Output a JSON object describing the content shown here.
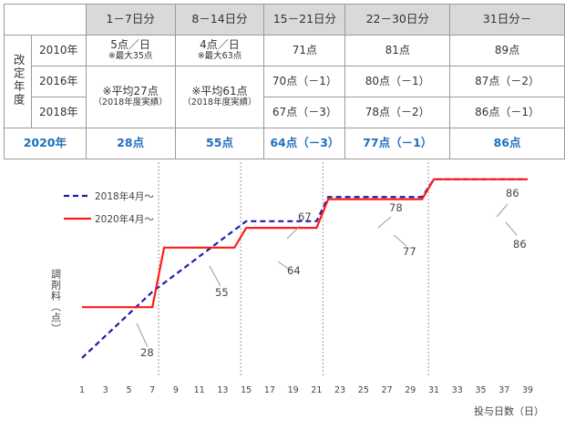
{
  "table": {
    "side_label": "改定年度",
    "headers": [
      "1－7日分",
      "8－14日分",
      "15－21日分",
      "22－30日分",
      "31日分－"
    ],
    "rows": [
      {
        "year": "2010年",
        "cells": [
          "5点／日",
          "4点／日",
          "71点",
          "81点",
          "89点"
        ],
        "notes": [
          "※最大35点",
          "※最大63点"
        ]
      },
      {
        "year": "2016年",
        "cells": [
          "",
          "",
          "70点（－1）",
          "80点（－1）",
          "87点（－2）"
        ]
      },
      {
        "year": "2018年",
        "cells": [
          "",
          "",
          "67点（－3）",
          "78点（－2）",
          "86点（－1）"
        ]
      },
      {
        "year": "2020年",
        "cells": [
          "28点",
          "55点",
          "64点（－3）",
          "77点（－1）",
          "86点"
        ]
      }
    ],
    "merged": [
      {
        "main": "※平均27点",
        "sub": "（2018年度実績）"
      },
      {
        "main": "※平均61点",
        "sub": "（2018年度実績）"
      }
    ]
  },
  "chart_data": {
    "type": "line",
    "xlabel": "投与日数（日）",
    "ylabel": "調剤料（点）",
    "x_ticks": [
      1,
      3,
      5,
      7,
      9,
      11,
      13,
      15,
      17,
      19,
      21,
      23,
      25,
      27,
      29,
      31,
      33,
      35,
      37,
      39
    ],
    "xlim": [
      1,
      39
    ],
    "ylim": [
      0,
      95
    ],
    "divider_days": [
      8,
      15,
      22,
      31
    ],
    "legend_position": "top-left",
    "series": [
      {
        "name": "2018年4月～",
        "color": "#1c1cb0",
        "style": "dashed",
        "points": [
          [
            1,
            5
          ],
          [
            7,
            35
          ],
          [
            8,
            39
          ],
          [
            14,
            63
          ],
          [
            15,
            67
          ],
          [
            21,
            67
          ],
          [
            22,
            78
          ],
          [
            30,
            78
          ],
          [
            31,
            86
          ],
          [
            39,
            86
          ]
        ]
      },
      {
        "name": "2020年4月～",
        "color": "#ff1a1a",
        "style": "solid",
        "points": [
          [
            1,
            28
          ],
          [
            7,
            28
          ],
          [
            8,
            55
          ],
          [
            14,
            55
          ],
          [
            15,
            64
          ],
          [
            21,
            64
          ],
          [
            22,
            77
          ],
          [
            30,
            77
          ],
          [
            31,
            86
          ],
          [
            39,
            86
          ]
        ]
      }
    ],
    "annotations": [
      {
        "text": "28",
        "x": 6,
        "y": 28
      },
      {
        "text": "55",
        "x": 12,
        "y": 55
      },
      {
        "text": "64",
        "x": 19,
        "y": 64
      },
      {
        "text": "67",
        "x": 19,
        "y": 67
      },
      {
        "text": "77",
        "x": 28,
        "y": 77
      },
      {
        "text": "78",
        "x": 28,
        "y": 78
      },
      {
        "text": "86",
        "x": 36,
        "y": 86
      },
      {
        "text": "86",
        "x": 36,
        "y": 86
      }
    ]
  }
}
